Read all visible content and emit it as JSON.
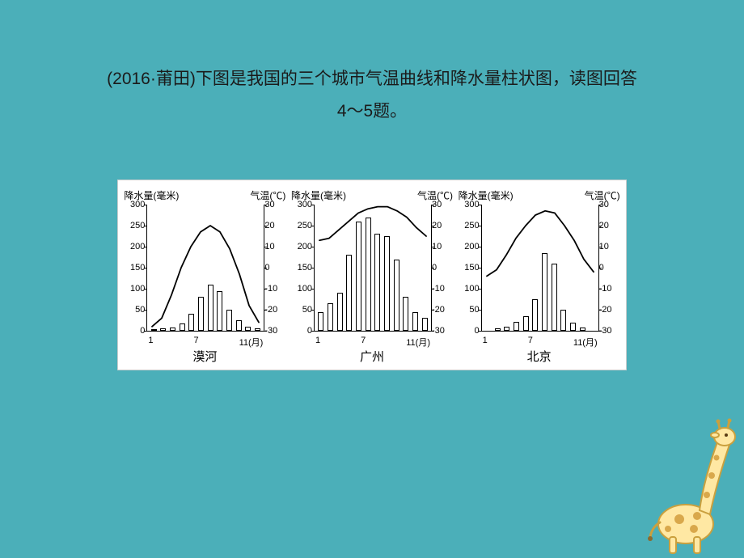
{
  "question": {
    "prefix": "(2016·莆田)",
    "body": "下图是我国的三个城市气温曲线和降水量柱状图，读图回答",
    "range": "4～5题。"
  },
  "chart_common": {
    "left_axis_label": "降水量(毫米)",
    "right_axis_label": "气温(℃)",
    "precip_ticks": [
      0,
      50,
      100,
      150,
      200,
      250,
      300
    ],
    "temp_ticks": [
      -30,
      -20,
      -10,
      0,
      10,
      20,
      30
    ],
    "x_ticks": [
      "1",
      "7",
      "11(月)"
    ],
    "precip_max": 300,
    "temp_min": -30,
    "temp_max": 30,
    "bar_border_color": "#000000",
    "bar_fill_color": "#ffffff",
    "curve_color": "#000000",
    "curve_width": 1.8,
    "background": "#ffffff",
    "axis_color": "#000000",
    "label_fontsize": 12,
    "tick_fontsize": 11
  },
  "cities": [
    {
      "name": "漠河",
      "precip_mm": [
        4,
        5,
        8,
        18,
        40,
        80,
        110,
        95,
        50,
        25,
        10,
        6
      ],
      "temp_c": [
        -28,
        -24,
        -13,
        0,
        10,
        17,
        20,
        17,
        9,
        -3,
        -18,
        -26
      ]
    },
    {
      "name": "广州",
      "precip_mm": [
        45,
        65,
        90,
        180,
        260,
        270,
        230,
        225,
        170,
        80,
        45,
        30
      ],
      "temp_c": [
        13,
        14,
        18,
        22,
        26,
        28,
        29,
        29,
        27,
        24,
        19,
        15
      ]
    },
    {
      "name": "北京",
      "precip_mm": [
        3,
        6,
        10,
        22,
        35,
        75,
        185,
        160,
        50,
        20,
        8,
        3
      ],
      "temp_c": [
        -4,
        -1,
        6,
        14,
        20,
        25,
        27,
        26,
        20,
        13,
        4,
        -2
      ]
    }
  ],
  "colors": {
    "slide_background": "#4bafb9",
    "text": "#1b1b1b"
  }
}
